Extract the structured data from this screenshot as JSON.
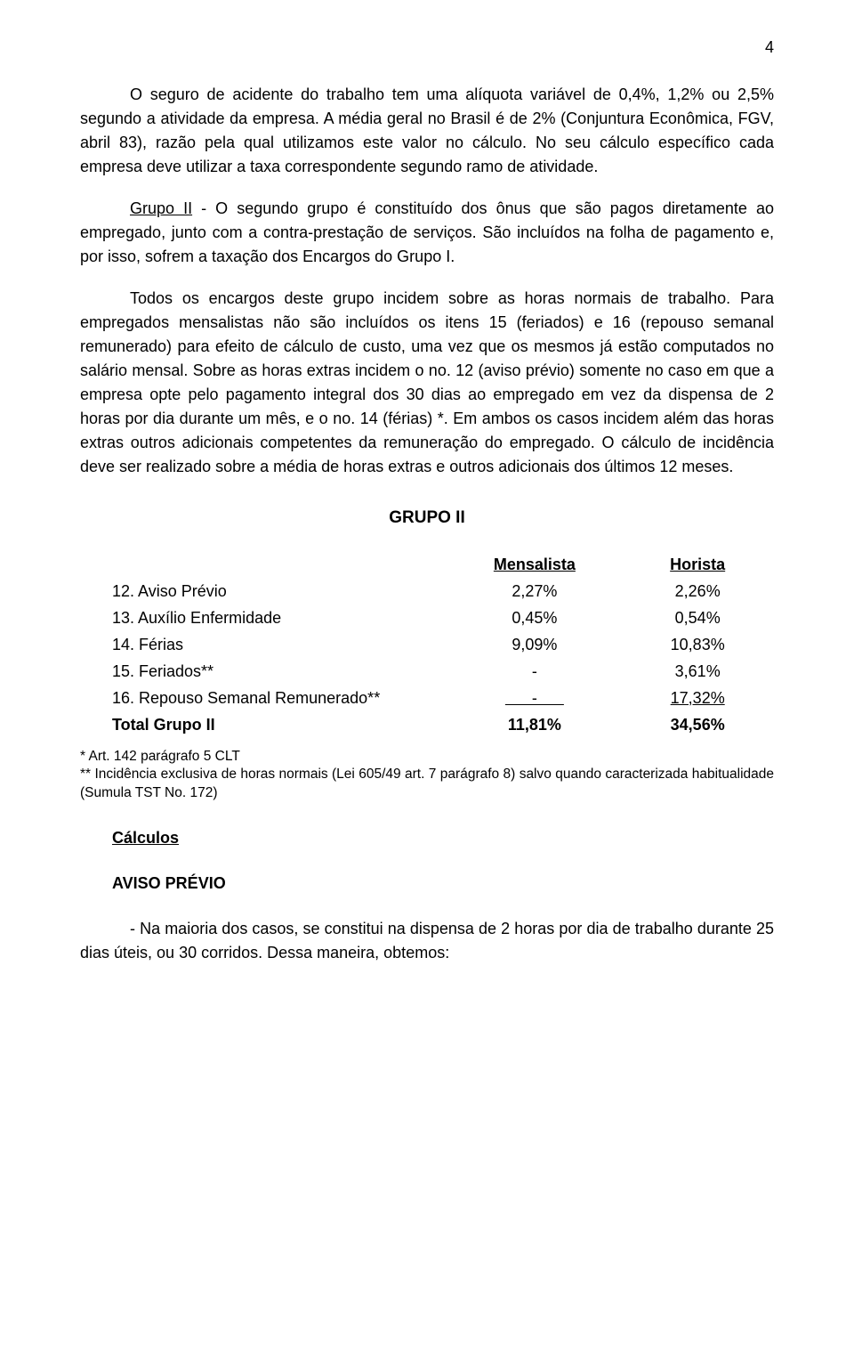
{
  "page_number": "4",
  "para1": "O seguro de acidente do trabalho tem uma alíquota variável de 0,4%, 1,2% ou 2,5% segundo a atividade da empresa. A média geral no Brasil é de 2% (Conjuntura Econômica, FGV, abril 83), razão pela qual utilizamos este valor no cálculo. No seu cálculo específico cada empresa deve utilizar a taxa correspondente segundo ramo de atividade.",
  "grupo2_label": "Grupo II",
  "para2_rest": " - O segundo grupo é constituído dos ônus que são pagos diretamente ao empregado, junto com a contra-prestação de serviços. São incluídos na folha de pagamento e, por isso, sofrem a taxação dos Encargos do Grupo I.",
  "para3": "Todos os encargos deste grupo incidem sobre as horas normais de trabalho. Para empregados mensalistas não são incluídos os itens 15 (feriados) e 16 (repouso semanal remunerado) para efeito de cálculo de custo, uma vez que os mesmos já estão computados no salário mensal. Sobre as horas extras incidem o no. 12 (aviso prévio) somente no caso em que a empresa opte pelo pagamento integral dos 30 dias ao empregado em vez da dispensa de 2 horas por dia durante um mês, e o no. 14 (férias) *. Em ambos os casos incidem além das horas extras outros adicionais competentes da remuneração do empregado. O cálculo de incidência deve ser realizado sobre a média de horas extras e outros adicionais dos últimos 12 meses.",
  "table_title": "GRUPO  II",
  "table": {
    "header_mensalista": "Mensalista",
    "header_horista": "Horista",
    "rows": [
      {
        "label": "12. Aviso Prévio",
        "m": "2,27%",
        "h": "2,26%",
        "ul": false
      },
      {
        "label": "13. Auxílio Enfermidade",
        "m": "0,45%",
        "h": "0,54%",
        "ul": false
      },
      {
        "label": "14. Férias",
        "m": "9,09%",
        "h": "10,83%",
        "ul": false
      },
      {
        "label": "15. Feriados**",
        "m": "-",
        "h": "3,61%",
        "ul": false
      },
      {
        "label": "16. Repouso Semanal Remunerado**",
        "m": "      -      ",
        "h": "17,32%",
        "ul": true
      }
    ],
    "total_label": "Total Grupo II",
    "total_m": "11,81%",
    "total_h": "34,56%"
  },
  "footnote1": "* Art. 142 parágrafo 5 CLT",
  "footnote2": "** Incidência exclusiva de horas normais (Lei 605/49 art. 7 parágrafo 8) salvo quando caracterizada habitualidade (Sumula TST No. 172)",
  "calculos_heading": "Cálculos",
  "aviso_heading": "AVISO PRÉVIO",
  "para_last": "- Na maioria dos casos, se constitui na dispensa de 2 horas por dia de trabalho durante 25 dias úteis, ou 30 corridos. Dessa maneira, obtemos:"
}
